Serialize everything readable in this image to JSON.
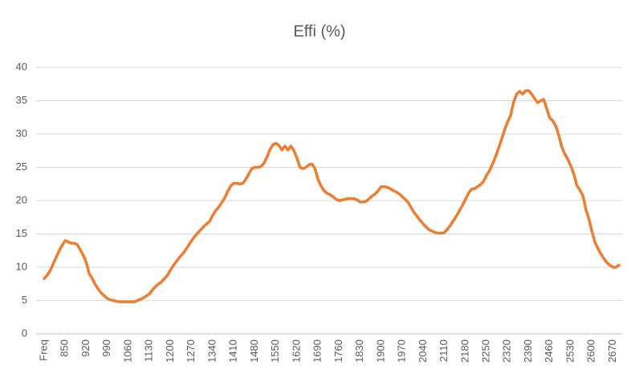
{
  "chart_data": {
    "type": "line",
    "title": "Effi (%)",
    "categories": [
      "Freq",
      null,
      null,
      null,
      null,
      null,
      null,
      "850",
      null,
      null,
      null,
      null,
      null,
      null,
      "920",
      null,
      null,
      null,
      null,
      null,
      null,
      "990",
      null,
      null,
      null,
      null,
      null,
      null,
      "1060",
      null,
      null,
      null,
      null,
      null,
      null,
      "1130",
      null,
      null,
      null,
      null,
      null,
      null,
      "1200",
      null,
      null,
      null,
      null,
      null,
      null,
      "1270",
      null,
      null,
      null,
      null,
      null,
      null,
      "1340",
      null,
      null,
      null,
      null,
      null,
      null,
      "1410",
      null,
      null,
      null,
      null,
      null,
      null,
      "1480",
      null,
      null,
      null,
      null,
      null,
      null,
      "1550",
      null,
      null,
      null,
      null,
      null,
      null,
      "1620",
      null,
      null,
      null,
      null,
      null,
      null,
      "1690",
      null,
      null,
      null,
      null,
      null,
      null,
      "1760",
      null,
      null,
      null,
      null,
      null,
      null,
      "1830",
      null,
      null,
      null,
      null,
      null,
      null,
      "1900",
      null,
      null,
      null,
      null,
      null,
      null,
      "1970",
      null,
      null,
      null,
      null,
      null,
      null,
      "2040",
      null,
      null,
      null,
      null,
      null,
      null,
      "2110",
      null,
      null,
      null,
      null,
      null,
      null,
      "2180",
      null,
      null,
      null,
      null,
      null,
      null,
      "2250",
      null,
      null,
      null,
      null,
      null,
      null,
      "2320",
      null,
      null,
      null,
      null,
      null,
      null,
      "2390",
      null,
      null,
      null,
      null,
      null,
      null,
      "2460",
      null,
      null,
      null,
      null,
      null,
      null,
      "2530",
      null,
      null,
      null,
      null,
      null,
      null,
      "2600",
      null,
      null,
      null,
      null,
      null,
      null,
      "2670",
      null,
      null
    ],
    "values": [
      8.3,
      8.8,
      9.5,
      10.5,
      11.5,
      12.5,
      13.3,
      14.0,
      13.8,
      13.6,
      13.6,
      13.4,
      12.6,
      11.8,
      10.7,
      9.0,
      8.3,
      7.4,
      6.7,
      6.1,
      5.7,
      5.3,
      5.1,
      5.0,
      4.9,
      4.8,
      4.8,
      4.8,
      4.8,
      4.8,
      4.8,
      5.0,
      5.2,
      5.4,
      5.7,
      6.0,
      6.6,
      7.1,
      7.5,
      7.8,
      8.3,
      8.8,
      9.6,
      10.3,
      10.9,
      11.5,
      12.0,
      12.6,
      13.3,
      14.0,
      14.6,
      15.1,
      15.6,
      16.1,
      16.5,
      16.9,
      17.8,
      18.5,
      19.0,
      19.7,
      20.4,
      21.4,
      22.2,
      22.6,
      22.6,
      22.5,
      22.6,
      23.2,
      24.0,
      24.8,
      25.0,
      25.0,
      25.1,
      25.6,
      26.5,
      27.6,
      28.4,
      28.6,
      28.3,
      27.6,
      28.2,
      27.6,
      28.2,
      27.5,
      26.4,
      25.0,
      24.8,
      25.0,
      25.4,
      25.5,
      24.8,
      23.2,
      22.2,
      21.5,
      21.1,
      20.9,
      20.6,
      20.2,
      20.0,
      20.1,
      20.2,
      20.3,
      20.3,
      20.3,
      20.1,
      19.8,
      19.8,
      19.9,
      20.3,
      20.7,
      21.0,
      21.5,
      22.1,
      22.1,
      22.0,
      21.8,
      21.5,
      21.3,
      21.0,
      20.6,
      20.2,
      19.7,
      18.9,
      18.2,
      17.6,
      17.0,
      16.5,
      16.0,
      15.6,
      15.4,
      15.2,
      15.1,
      15.1,
      15.2,
      15.7,
      16.3,
      17.0,
      17.7,
      18.5,
      19.3,
      20.2,
      21.1,
      21.7,
      21.8,
      22.1,
      22.4,
      22.9,
      23.8,
      24.5,
      25.5,
      26.6,
      27.9,
      29.2,
      30.6,
      31.8,
      32.8,
      34.8,
      36.0,
      36.4,
      36.0,
      36.5,
      36.5,
      36.0,
      35.3,
      34.7,
      35.0,
      35.2,
      33.8,
      32.4,
      32.0,
      31.2,
      29.8,
      28.1,
      27.0,
      26.2,
      25.2,
      24.0,
      22.3,
      21.6,
      20.8,
      18.7,
      17.3,
      15.4,
      13.8,
      12.8,
      12.0,
      11.3,
      10.7,
      10.3,
      10.0,
      10.0,
      10.3
    ],
    "color": "#ed7d31",
    "ylim": [
      0,
      40
    ],
    "yticks": [
      0,
      5,
      10,
      15,
      20,
      25,
      30,
      35,
      40
    ],
    "grid": true
  }
}
